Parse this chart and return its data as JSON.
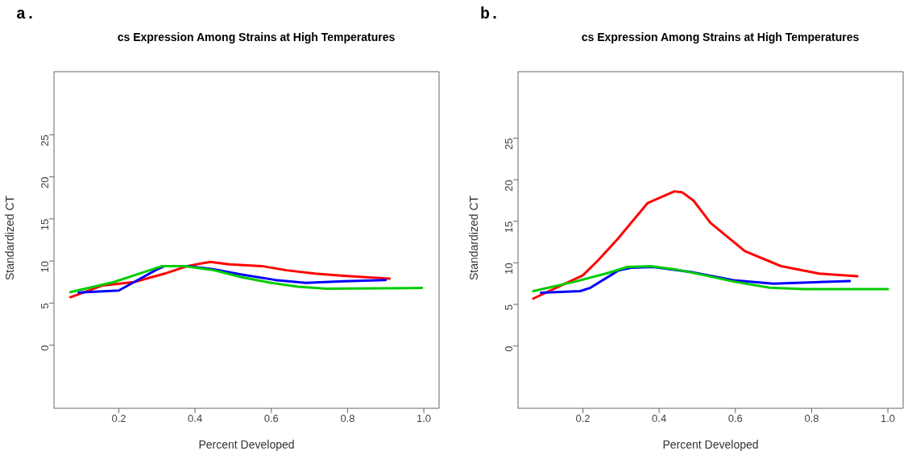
{
  "chart_data": [
    {
      "type": "line",
      "title": "cs Expression Among Strains at High Temperatures",
      "annotations": [
        "a."
      ],
      "xlabel": "Percent Developed",
      "ylabel": "Standardized CT",
      "xlim": [
        0.03,
        1.04
      ],
      "xticks": [
        {
          "value": 0.2,
          "label": "0.2"
        },
        {
          "value": 0.4,
          "label": "0.4"
        },
        {
          "value": 0.6,
          "label": "0.6"
        },
        {
          "value": 0.8,
          "label": "0.8"
        },
        {
          "value": 1.0,
          "label": "1.0"
        }
      ],
      "ylim": [
        -7.5,
        32.5
      ],
      "yticks": [
        0,
        5,
        10,
        15,
        20,
        25
      ],
      "grid": false,
      "series": [
        {
          "color": "#ff0000",
          "x": [
            0.073,
            0.158,
            0.24,
            0.32,
            0.38,
            0.44,
            0.49,
            0.575,
            0.64,
            0.715,
            0.79,
            0.91
          ],
          "values": [
            5.7,
            7.1,
            7.5,
            8.5,
            9.4,
            9.9,
            9.6,
            9.4,
            8.9,
            8.5,
            8.25,
            7.9
          ]
        },
        {
          "color": "#0000ff",
          "x": [
            0.095,
            0.2,
            0.24,
            0.3,
            0.32,
            0.38,
            0.45,
            0.52,
            0.61,
            0.69,
            0.79,
            0.9
          ],
          "values": [
            6.25,
            6.5,
            7.5,
            9.0,
            9.4,
            9.4,
            9.0,
            8.4,
            7.75,
            7.4,
            7.6,
            7.75
          ]
        },
        {
          "color": "#00cc00",
          "x": [
            0.073,
            0.187,
            0.247,
            0.314,
            0.374,
            0.45,
            0.52,
            0.6,
            0.67,
            0.745,
            0.995
          ],
          "values": [
            6.3,
            7.5,
            8.4,
            9.4,
            9.4,
            8.9,
            8.1,
            7.4,
            6.95,
            6.7,
            6.8
          ]
        }
      ]
    },
    {
      "type": "line",
      "title": "cs Expression Among Strains at High Temperatures",
      "annotations": [
        "b."
      ],
      "xlabel": "Percent Developed",
      "ylabel": "Standardized CT",
      "xlim": [
        0.03,
        1.04
      ],
      "xticks": [
        {
          "value": 0.2,
          "label": "0.2"
        },
        {
          "value": 0.4,
          "label": "0.4"
        },
        {
          "value": 0.6,
          "label": "0.6"
        },
        {
          "value": 0.8,
          "label": "0.8"
        },
        {
          "value": 1.0,
          "label": "1.0"
        }
      ],
      "ylim": [
        -7.5,
        33
      ],
      "yticks": [
        0,
        5,
        10,
        15,
        20,
        25
      ],
      "grid": false,
      "series": [
        {
          "color": "#ff0000",
          "x": [
            0.07,
            0.2,
            0.24,
            0.29,
            0.37,
            0.44,
            0.46,
            0.49,
            0.535,
            0.625,
            0.72,
            0.82,
            0.92
          ],
          "values": [
            5.7,
            8.5,
            10.3,
            12.8,
            17.2,
            18.6,
            18.5,
            17.5,
            14.8,
            11.4,
            9.6,
            8.7,
            8.4
          ]
        },
        {
          "color": "#0000ff",
          "x": [
            0.09,
            0.193,
            0.22,
            0.294,
            0.326,
            0.384,
            0.483,
            0.595,
            0.7,
            0.9
          ],
          "values": [
            6.4,
            6.6,
            7.0,
            9.1,
            9.4,
            9.5,
            8.9,
            7.9,
            7.5,
            7.8
          ]
        },
        {
          "color": "#00cc00",
          "x": [
            0.07,
            0.18,
            0.26,
            0.317,
            0.378,
            0.445,
            0.52,
            0.595,
            0.69,
            0.78,
            1.0
          ],
          "values": [
            6.6,
            7.75,
            8.7,
            9.5,
            9.6,
            9.2,
            8.5,
            7.75,
            7.0,
            6.85,
            6.85
          ]
        }
      ]
    }
  ]
}
